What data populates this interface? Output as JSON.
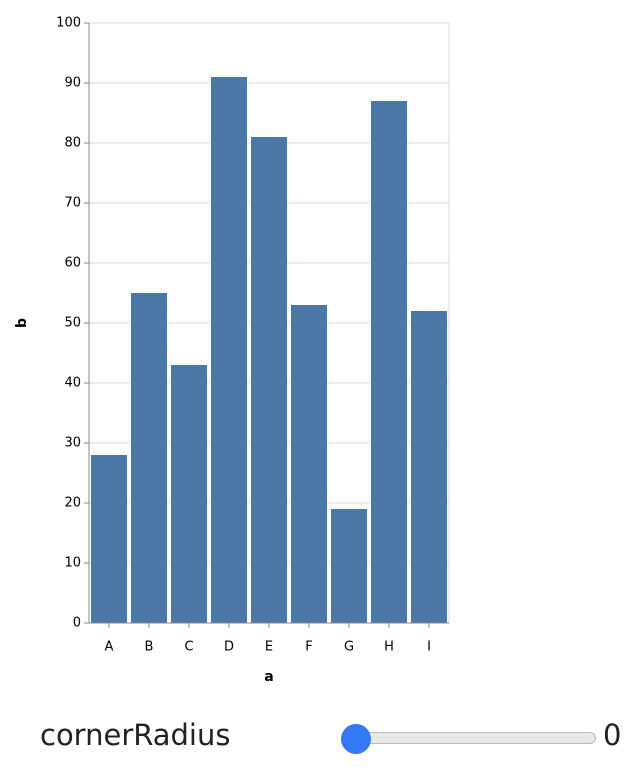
{
  "chart_data": {
    "type": "bar",
    "x_label": "a",
    "y_label": "b",
    "categories": [
      "A",
      "B",
      "C",
      "D",
      "E",
      "F",
      "G",
      "H",
      "I"
    ],
    "values": [
      28,
      55,
      43,
      91,
      81,
      53,
      19,
      87,
      52
    ],
    "color": "#4c78a8",
    "ylim": [
      0,
      100
    ],
    "yticks": [
      0,
      10,
      20,
      30,
      40,
      50,
      60,
      70,
      80,
      90,
      100
    ],
    "grid": true
  },
  "control": {
    "label": "cornerRadius",
    "value": 0
  }
}
